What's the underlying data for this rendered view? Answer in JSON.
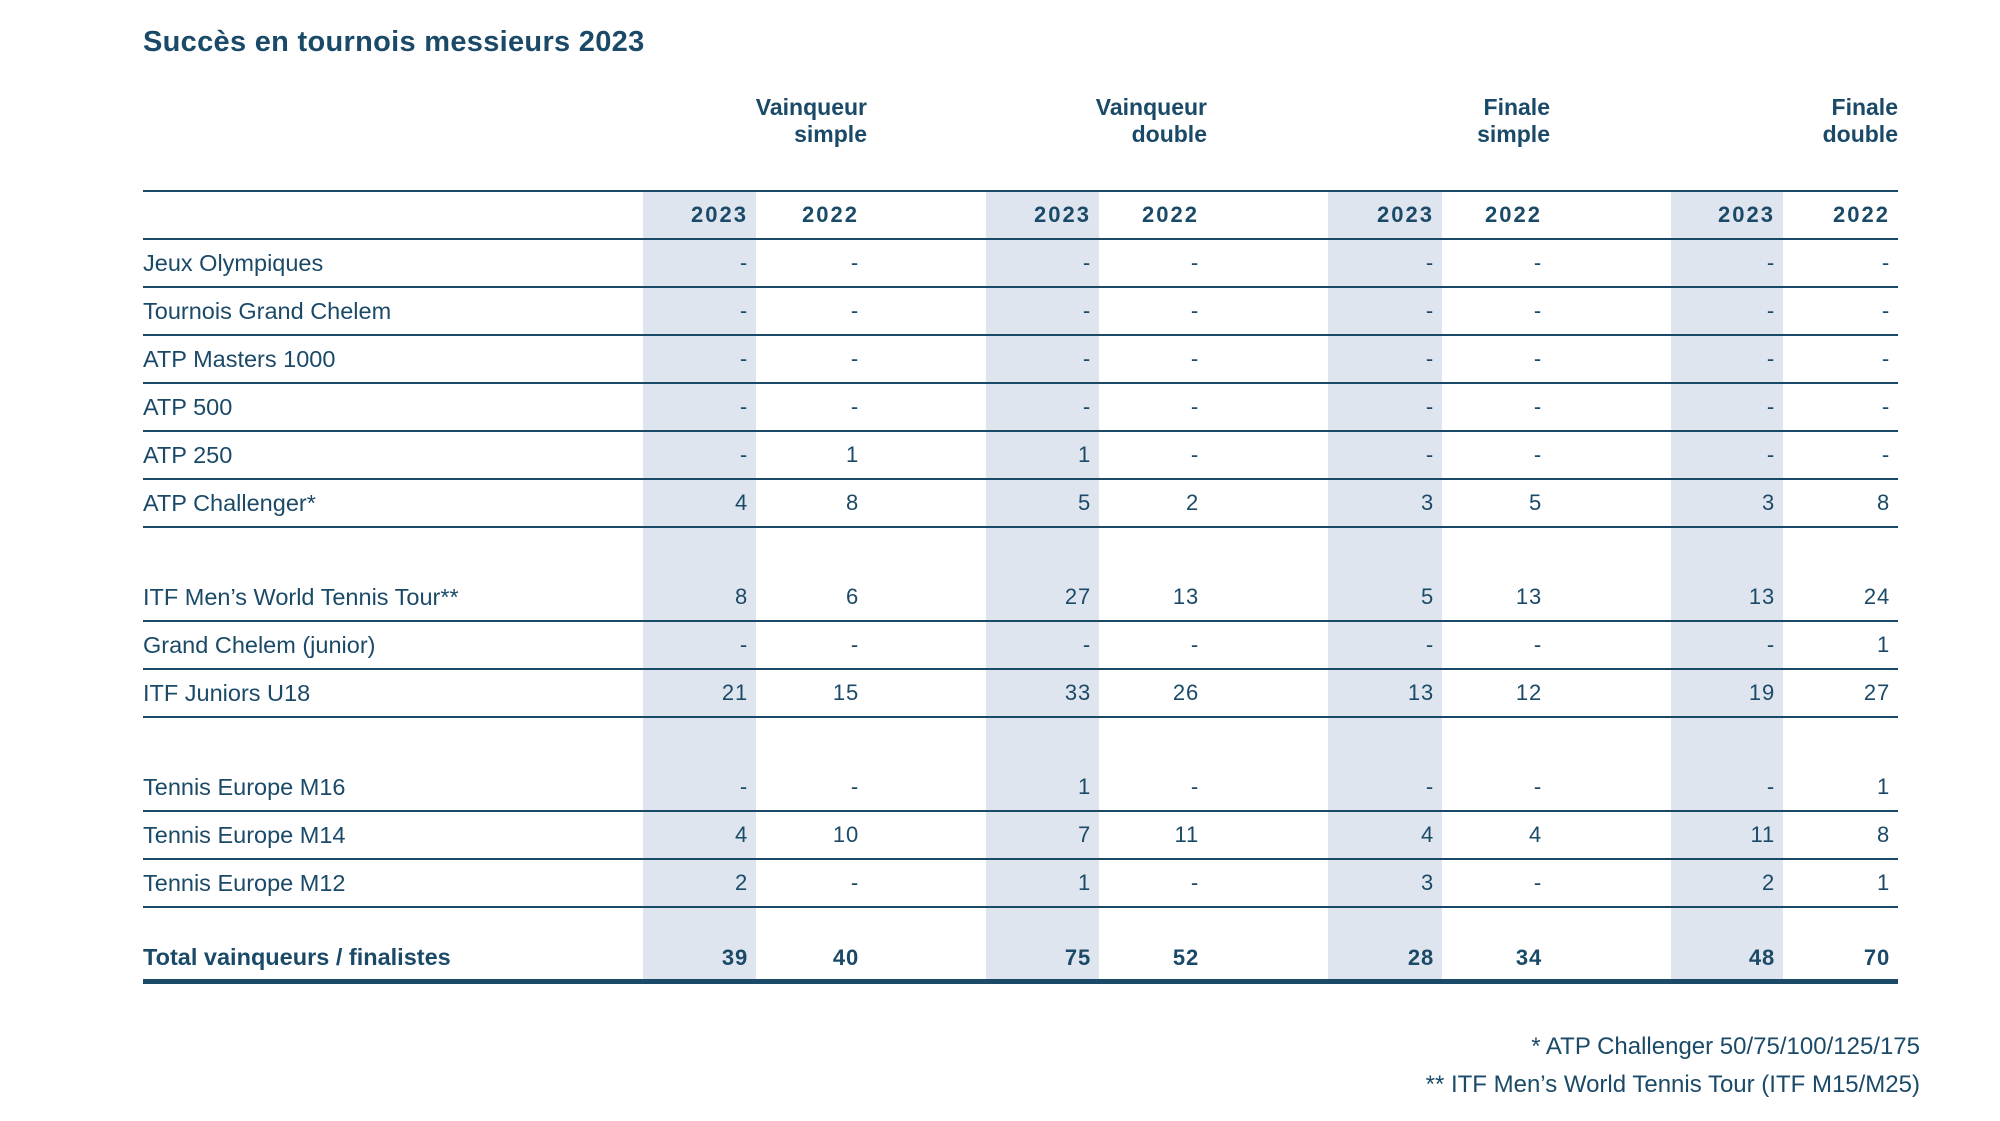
{
  "title": "Succès en tournois messieurs 2023",
  "colors": {
    "navy": "#1b4a68",
    "band": "#dfe5ef"
  },
  "table": {
    "groups": [
      {
        "line1": "Vainqueur",
        "line2": "simple"
      },
      {
        "line1": "Vainqueur",
        "line2": "double"
      },
      {
        "line1": "Finale",
        "line2": "simple"
      },
      {
        "line1": "Finale",
        "line2": "double"
      }
    ],
    "year_headers": [
      "2023",
      "2022",
      "2023",
      "2022",
      "2023",
      "2022",
      "2023",
      "2022"
    ],
    "sections": [
      {
        "rows": [
          {
            "label": "Jeux Olympiques",
            "values": [
              "-",
              "-",
              "-",
              "-",
              "-",
              "-",
              "-",
              "-"
            ]
          },
          {
            "label": "Tournois Grand Chelem",
            "values": [
              "-",
              "-",
              "-",
              "-",
              "-",
              "-",
              "-",
              "-"
            ]
          },
          {
            "label": "ATP Masters 1000",
            "values": [
              "-",
              "-",
              "-",
              "-",
              "-",
              "-",
              "-",
              "-"
            ]
          },
          {
            "label": "ATP 500",
            "values": [
              "-",
              "-",
              "-",
              "-",
              "-",
              "-",
              "-",
              "-"
            ]
          },
          {
            "label": "ATP 250",
            "values": [
              "-",
              "1",
              "1",
              "-",
              "-",
              "-",
              "-",
              "-"
            ]
          },
          {
            "label": "ATP Challenger*",
            "values": [
              "4",
              "8",
              "5",
              "2",
              "3",
              "5",
              "3",
              "8"
            ]
          }
        ]
      },
      {
        "rows": [
          {
            "label": "ITF Men’s World Tennis Tour**",
            "values": [
              "8",
              "6",
              "27",
              "13",
              "5",
              "13",
              "13",
              "24"
            ]
          },
          {
            "label": "Grand Chelem (junior)",
            "values": [
              "-",
              "-",
              "-",
              "-",
              "-",
              "-",
              "-",
              "1"
            ]
          },
          {
            "label": "ITF Juniors U18",
            "values": [
              "21",
              "15",
              "33",
              "26",
              "13",
              "12",
              "19",
              "27"
            ]
          }
        ]
      },
      {
        "rows": [
          {
            "label": "Tennis Europe M16",
            "values": [
              "-",
              "-",
              "1",
              "-",
              "-",
              "-",
              "-",
              "1"
            ]
          },
          {
            "label": "Tennis Europe M14",
            "values": [
              "4",
              "10",
              "7",
              "11",
              "4",
              "4",
              "11",
              "8"
            ]
          },
          {
            "label": "Tennis Europe M12",
            "values": [
              "2",
              "-",
              "1",
              "-",
              "3",
              "-",
              "2",
              "1"
            ]
          }
        ]
      }
    ],
    "total": {
      "label": "Total vainqueurs / finalistes",
      "values": [
        "39",
        "40",
        "75",
        "52",
        "28",
        "34",
        "48",
        "70"
      ]
    }
  },
  "footnotes": [
    "* ATP Challenger 50/75/100/125/175",
    "** ITF Men’s World Tennis Tour (ITF M15/M25)"
  ]
}
